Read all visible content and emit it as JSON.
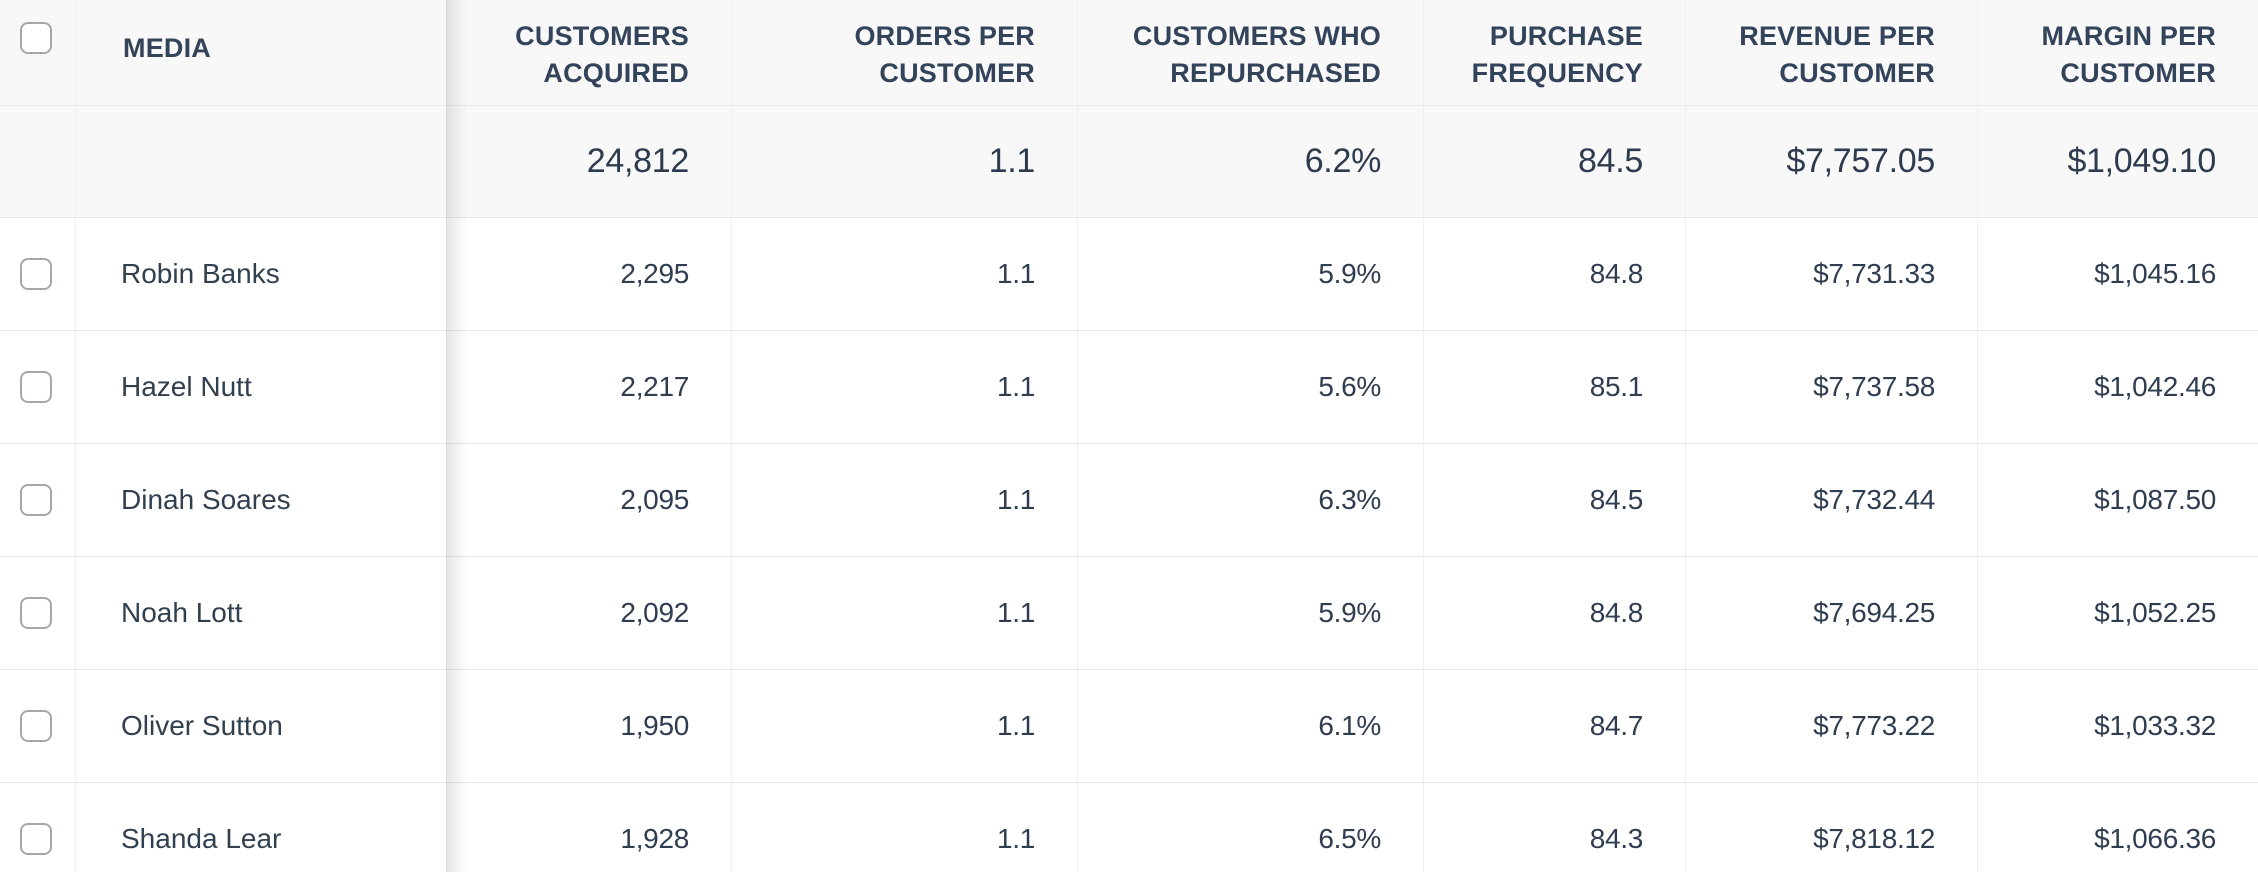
{
  "colors": {
    "header_background": "#f8f8f8",
    "row_background": "#ffffff",
    "divider": "#e8e8e8",
    "text_primary": "#2e3d50",
    "header_text": "#32435a"
  },
  "table": {
    "columns": [
      {
        "key": "media",
        "label_line1": "MEDIA"
      },
      {
        "key": "customers_acquired",
        "label_line1": "CUSTOMERS",
        "label_line2": "ACQUIRED"
      },
      {
        "key": "orders_per_customer",
        "label_line1": "ORDERS PER",
        "label_line2": "CUSTOMER"
      },
      {
        "key": "customers_who_repurchased",
        "label_line1": "CUSTOMERS WHO",
        "label_line2": "REPURCHASED"
      },
      {
        "key": "purchase_frequency",
        "label_line1": "PURCHASE",
        "label_line2": "FREQUENCY"
      },
      {
        "key": "revenue_per_customer",
        "label_line1": "REVENUE PER",
        "label_line2": "CUSTOMER"
      },
      {
        "key": "margin_per_customer",
        "label_line1": "MARGIN PER",
        "label_line2": "CUSTOMER"
      }
    ],
    "totals": {
      "customers_acquired": "24,812",
      "orders_per_customer": "1.1",
      "customers_who_repurchased": "6.2%",
      "purchase_frequency": "84.5",
      "revenue_per_customer": "$7,757.05",
      "margin_per_customer": "$1,049.10"
    },
    "rows": [
      {
        "name": "Robin Banks",
        "customers_acquired": "2,295",
        "orders_per_customer": "1.1",
        "customers_who_repurchased": "5.9%",
        "purchase_frequency": "84.8",
        "revenue_per_customer": "$7,731.33",
        "margin_per_customer": "$1,045.16"
      },
      {
        "name": "Hazel Nutt",
        "customers_acquired": "2,217",
        "orders_per_customer": "1.1",
        "customers_who_repurchased": "5.6%",
        "purchase_frequency": "85.1",
        "revenue_per_customer": "$7,737.58",
        "margin_per_customer": "$1,042.46"
      },
      {
        "name": "Dinah Soares",
        "customers_acquired": "2,095",
        "orders_per_customer": "1.1",
        "customers_who_repurchased": "6.3%",
        "purchase_frequency": "84.5",
        "revenue_per_customer": "$7,732.44",
        "margin_per_customer": "$1,087.50"
      },
      {
        "name": "Noah Lott",
        "customers_acquired": "2,092",
        "orders_per_customer": "1.1",
        "customers_who_repurchased": "5.9%",
        "purchase_frequency": "84.8",
        "revenue_per_customer": "$7,694.25",
        "margin_per_customer": "$1,052.25"
      },
      {
        "name": "Oliver Sutton",
        "customers_acquired": "1,950",
        "orders_per_customer": "1.1",
        "customers_who_repurchased": "6.1%",
        "purchase_frequency": "84.7",
        "revenue_per_customer": "$7,773.22",
        "margin_per_customer": "$1,033.32"
      },
      {
        "name": "Shanda Lear",
        "customers_acquired": "1,928",
        "orders_per_customer": "1.1",
        "customers_who_repurchased": "6.5%",
        "purchase_frequency": "84.3",
        "revenue_per_customer": "$7,818.12",
        "margin_per_customer": "$1,066.36"
      }
    ]
  }
}
